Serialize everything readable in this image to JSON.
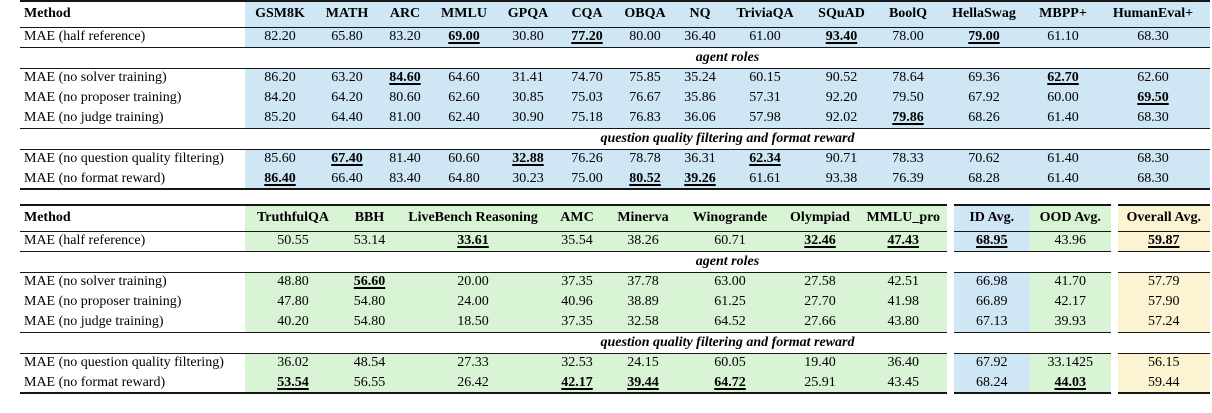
{
  "colors": {
    "blue": "#cfe6f5",
    "green": "#d9f3d5",
    "yellow": "#fcf3d3",
    "rule": "#161616"
  },
  "section_labels": {
    "agent_roles": "agent roles",
    "qq_format": "question quality filtering and format reward"
  },
  "tables": [
    {
      "method_header": "Method",
      "columns": [
        {
          "label": "GSM8K",
          "color": "blue"
        },
        {
          "label": "MATH",
          "color": "blue"
        },
        {
          "label": "ARC",
          "color": "blue"
        },
        {
          "label": "MMLU",
          "color": "blue"
        },
        {
          "label": "GPQA",
          "color": "blue"
        },
        {
          "label": "CQA",
          "color": "blue"
        },
        {
          "label": "OBQA",
          "color": "blue"
        },
        {
          "label": "NQ",
          "color": "blue"
        },
        {
          "label": "TriviaQA",
          "color": "blue"
        },
        {
          "label": "SQuAD",
          "color": "blue"
        },
        {
          "label": "BoolQ",
          "color": "blue"
        },
        {
          "label": "HellaSwag",
          "color": "blue"
        },
        {
          "label": "MBPP+",
          "color": "blue"
        },
        {
          "label": "HumanEval+",
          "color": "blue"
        }
      ],
      "rows": [
        {
          "type": "data",
          "method": "MAE (half reference)",
          "values": [
            "82.20",
            "65.80",
            "83.20",
            "69.00",
            "30.80",
            "77.20",
            "80.00",
            "36.40",
            "61.00",
            "93.40",
            "78.00",
            "79.00",
            "61.10",
            "68.30"
          ],
          "bold": [
            3,
            5,
            9,
            11
          ]
        },
        {
          "type": "section",
          "label": "agent roles"
        },
        {
          "type": "data",
          "method": "MAE (no solver training)",
          "values": [
            "86.20",
            "63.20",
            "84.60",
            "64.60",
            "31.41",
            "74.70",
            "75.85",
            "35.24",
            "60.15",
            "90.52",
            "78.64",
            "69.36",
            "62.70",
            "62.60"
          ],
          "bold": [
            2,
            12
          ]
        },
        {
          "type": "data",
          "method": "MAE (no proposer training)",
          "values": [
            "84.20",
            "64.20",
            "80.60",
            "62.60",
            "30.85",
            "75.03",
            "76.67",
            "35.86",
            "57.31",
            "92.20",
            "79.50",
            "67.92",
            "60.00",
            "69.50"
          ],
          "bold": [
            13
          ]
        },
        {
          "type": "data",
          "method": "MAE (no judge training)",
          "values": [
            "85.20",
            "64.40",
            "81.00",
            "62.40",
            "30.90",
            "75.18",
            "76.83",
            "36.06",
            "57.98",
            "92.02",
            "79.86",
            "68.26",
            "61.40",
            "68.30"
          ],
          "bold": [
            10
          ]
        },
        {
          "type": "section",
          "label": "question quality filtering and format reward"
        },
        {
          "type": "data",
          "method": "MAE (no question quality filtering)",
          "values": [
            "85.60",
            "67.40",
            "81.40",
            "60.60",
            "32.88",
            "76.26",
            "78.78",
            "36.31",
            "62.34",
            "90.71",
            "78.33",
            "70.62",
            "61.40",
            "68.30"
          ],
          "bold": [
            1,
            4,
            8
          ]
        },
        {
          "type": "data",
          "method": "MAE (no format reward)",
          "values": [
            "86.40",
            "66.40",
            "83.40",
            "64.80",
            "30.23",
            "75.00",
            "80.52",
            "39.26",
            "61.61",
            "93.38",
            "76.39",
            "68.28",
            "61.40",
            "68.30"
          ],
          "bold": [
            0,
            6,
            7
          ]
        }
      ]
    },
    {
      "method_header": "Method",
      "columns": [
        {
          "label": "TruthfulQA",
          "color": "green"
        },
        {
          "label": "BBH",
          "color": "green"
        },
        {
          "label": "LiveBench Reasoning",
          "color": "green"
        },
        {
          "label": "AMC",
          "color": "green"
        },
        {
          "label": "Minerva",
          "color": "green"
        },
        {
          "label": "Winogrande",
          "color": "green"
        },
        {
          "label": "Olympiad",
          "color": "green"
        },
        {
          "label": "MMLU_pro",
          "color": "green"
        },
        {
          "label": "ID Avg.",
          "color": "blue",
          "gap_before": true
        },
        {
          "label": "OOD Avg.",
          "color": "green"
        },
        {
          "label": "Overall Avg.",
          "color": "yellow",
          "gap_before": true
        }
      ],
      "rows": [
        {
          "type": "data",
          "method": "MAE (half reference)",
          "values": [
            "50.55",
            "53.14",
            "33.61",
            "35.54",
            "38.26",
            "60.71",
            "32.46",
            "47.43",
            "68.95",
            "43.96",
            "59.87"
          ],
          "bold": [
            2,
            6,
            7,
            8,
            10
          ]
        },
        {
          "type": "section",
          "label": "agent roles"
        },
        {
          "type": "data",
          "method": "MAE (no solver training)",
          "values": [
            "48.80",
            "56.60",
            "20.00",
            "37.35",
            "37.78",
            "63.00",
            "27.58",
            "42.51",
            "66.98",
            "41.70",
            "57.79"
          ],
          "bold": [
            1
          ]
        },
        {
          "type": "data",
          "method": "MAE (no proposer training)",
          "values": [
            "47.80",
            "54.80",
            "24.00",
            "40.96",
            "38.89",
            "61.25",
            "27.70",
            "41.98",
            "66.89",
            "42.17",
            "57.90"
          ],
          "bold": []
        },
        {
          "type": "data",
          "method": "MAE (no judge training)",
          "values": [
            "40.20",
            "54.80",
            "18.50",
            "37.35",
            "32.58",
            "64.52",
            "27.66",
            "43.80",
            "67.13",
            "39.93",
            "57.24"
          ],
          "bold": []
        },
        {
          "type": "section",
          "label": "question quality filtering and format reward"
        },
        {
          "type": "data",
          "method": "MAE (no question quality filtering)",
          "values": [
            "36.02",
            "48.54",
            "27.33",
            "32.53",
            "24.15",
            "60.05",
            "19.40",
            "36.40",
            "67.92",
            "33.1425",
            "56.15"
          ],
          "bold": []
        },
        {
          "type": "data",
          "method": "MAE (no format reward)",
          "values": [
            "53.54",
            "56.55",
            "26.42",
            "42.17",
            "39.44",
            "64.72",
            "25.91",
            "43.45",
            "68.24",
            "44.03",
            "59.44"
          ],
          "bold": [
            0,
            3,
            4,
            5,
            9
          ]
        }
      ]
    }
  ]
}
